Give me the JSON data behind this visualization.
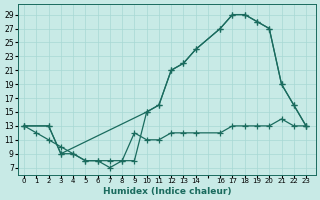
{
  "bg_color": "#c8eae6",
  "line_color": "#1a6b5e",
  "grid_color": "#a8d8d4",
  "xlabel": "Humidex (Indice chaleur)",
  "xlim": [
    -0.5,
    23.8
  ],
  "ylim": [
    6,
    30.5
  ],
  "yticks": [
    7,
    9,
    11,
    13,
    15,
    17,
    19,
    21,
    23,
    25,
    27,
    29
  ],
  "xtick_positions": [
    0,
    1,
    2,
    3,
    4,
    5,
    6,
    7,
    8,
    9,
    10,
    11,
    12,
    13,
    14,
    15,
    16,
    17,
    18,
    19,
    20,
    21,
    22,
    23
  ],
  "xtick_labels": [
    "0",
    "1",
    "2",
    "3",
    "4",
    "5",
    "6",
    "7",
    "8",
    "9",
    "10",
    "11",
    "12",
    "13",
    "14",
    "",
    "16",
    "17",
    "18",
    "19",
    "20",
    "21",
    "22",
    "23"
  ],
  "line1_x": [
    0,
    1,
    2,
    3,
    4,
    5,
    6,
    7,
    8,
    9,
    10,
    11,
    12,
    13,
    14,
    16,
    17,
    18,
    19,
    20,
    21,
    22,
    23
  ],
  "line1_y": [
    13,
    12,
    11,
    10,
    9,
    8,
    8,
    7,
    8,
    12,
    11,
    11,
    12,
    12,
    12,
    12,
    13,
    13,
    13,
    13,
    14,
    13,
    13
  ],
  "line2_x": [
    0,
    2,
    3,
    4,
    5,
    6,
    7,
    8,
    9,
    10,
    11,
    12,
    13,
    14,
    16,
    17,
    18,
    19,
    20,
    21,
    22,
    23
  ],
  "line2_y": [
    13,
    13,
    9,
    9,
    8,
    8,
    8,
    8,
    8,
    15,
    16,
    21,
    22,
    24,
    27,
    29,
    29,
    28,
    27,
    19,
    16,
    13
  ],
  "line3_x": [
    0,
    2,
    3,
    10,
    11,
    12,
    13,
    14,
    16,
    17,
    18,
    19,
    20,
    21,
    22,
    23
  ],
  "line3_y": [
    13,
    13,
    9,
    15,
    16,
    21,
    22,
    24,
    27,
    29,
    29,
    28,
    27,
    19,
    16,
    13
  ]
}
